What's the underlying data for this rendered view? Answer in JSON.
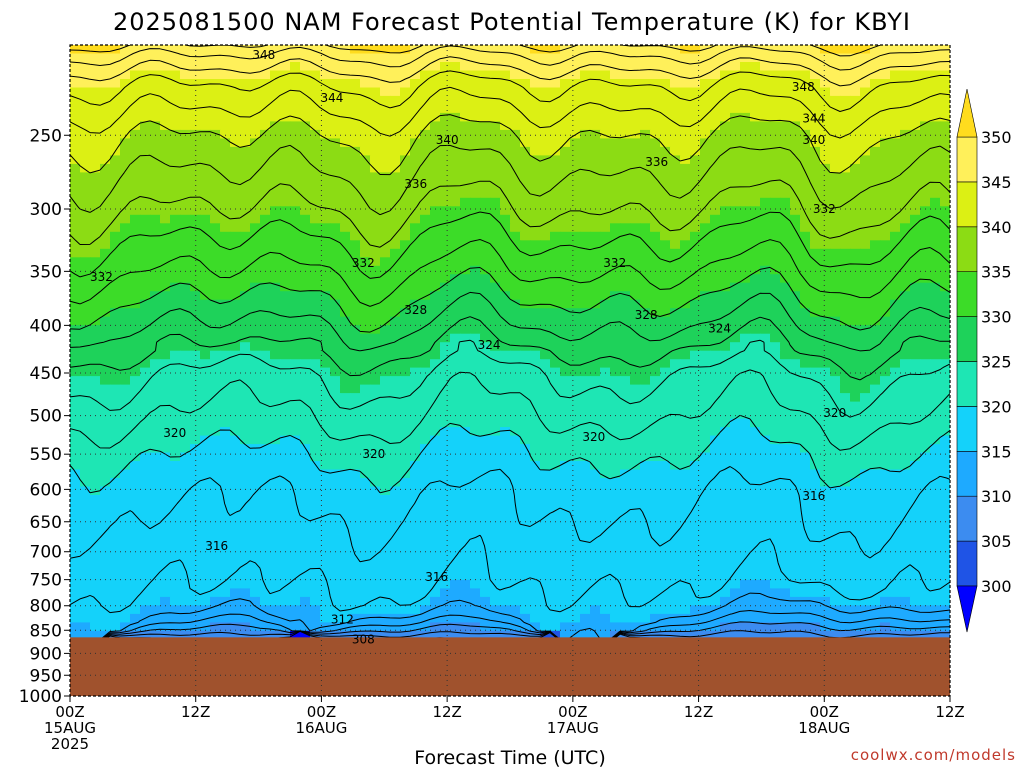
{
  "chart_data": {
    "type": "heatmap",
    "title": "2025081500 NAM Forecast Potential Temperature (K) for KBYI",
    "xlabel": "Forecast Time (UTC)",
    "ylabel": "",
    "x_ticks": [
      {
        "hour": 0,
        "label": "00Z",
        "sub": "15AUG",
        "sub2": "2025"
      },
      {
        "hour": 12,
        "label": "12Z",
        "sub": "",
        "sub2": ""
      },
      {
        "hour": 24,
        "label": "00Z",
        "sub": "16AUG",
        "sub2": ""
      },
      {
        "hour": 36,
        "label": "12Z",
        "sub": "",
        "sub2": ""
      },
      {
        "hour": 48,
        "label": "00Z",
        "sub": "17AUG",
        "sub2": ""
      },
      {
        "hour": 60,
        "label": "12Z",
        "sub": "",
        "sub2": ""
      },
      {
        "hour": 72,
        "label": "00Z",
        "sub": "18AUG",
        "sub2": ""
      },
      {
        "hour": 84,
        "label": "12Z",
        "sub": "",
        "sub2": ""
      }
    ],
    "xlim": [
      0,
      84
    ],
    "y_ticks": [
      250,
      300,
      350,
      400,
      450,
      500,
      550,
      600,
      650,
      700,
      750,
      800,
      850,
      900,
      950,
      1000
    ],
    "ylim": [
      1000,
      200
    ],
    "y_scale": "log-pressure",
    "grid": true,
    "surface_pressure": 865,
    "colorbar": {
      "levels": [
        300,
        305,
        310,
        315,
        320,
        325,
        330,
        335,
        340,
        345,
        350
      ],
      "colors": [
        "#0000ff",
        "#1f54e6",
        "#3c8cf0",
        "#1eaaff",
        "#14d2fa",
        "#1ee6b4",
        "#1ed25a",
        "#3cdc28",
        "#8cdc14",
        "#dcf014",
        "#fff05a",
        "#ffdc1e"
      ],
      "extend": "both"
    },
    "contour_levels": [
      306,
      308,
      310,
      312,
      314,
      316,
      318,
      320,
      322,
      324,
      326,
      328,
      330,
      332,
      334,
      336,
      338,
      340,
      342,
      344,
      346,
      348,
      350
    ],
    "theta_profile": [
      {
        "p": 865,
        "theta": 314
      },
      {
        "p": 800,
        "theta": 315.5
      },
      {
        "p": 700,
        "theta": 317
      },
      {
        "p": 600,
        "theta": 318.5
      },
      {
        "p": 550,
        "theta": 320
      },
      {
        "p": 500,
        "theta": 322
      },
      {
        "p": 450,
        "theta": 324
      },
      {
        "p": 400,
        "theta": 328
      },
      {
        "p": 350,
        "theta": 332
      },
      {
        "p": 300,
        "theta": 336
      },
      {
        "p": 250,
        "theta": 340
      },
      {
        "p": 220,
        "theta": 344
      },
      {
        "p": 205,
        "theta": 348
      },
      {
        "p": 200,
        "theta": 350
      }
    ],
    "boundary_layer": [
      {
        "hour": 3,
        "thickness": 0
      },
      {
        "hour": 9,
        "thickness": 70
      },
      {
        "hour": 17,
        "thickness": 140
      },
      {
        "hour": 22,
        "thickness": 0
      },
      {
        "hour": 27,
        "thickness": 60
      },
      {
        "hour": 39,
        "thickness": 110
      },
      {
        "hour": 46,
        "thickness": 0
      },
      {
        "hour": 52,
        "thickness": 0
      },
      {
        "hour": 60,
        "thickness": 90
      },
      {
        "hour": 68,
        "thickness": 150
      },
      {
        "hour": 74,
        "thickness": 120
      },
      {
        "hour": 84,
        "thickness": 80
      }
    ],
    "contour_labels": [
      {
        "text": "348",
        "hour": 18.5,
        "p": 205
      },
      {
        "text": "348",
        "hour": 70,
        "p": 222
      },
      {
        "text": "344",
        "hour": 25,
        "p": 228
      },
      {
        "text": "344",
        "hour": 71,
        "p": 240
      },
      {
        "text": "340",
        "hour": 36,
        "p": 253
      },
      {
        "text": "340",
        "hour": 71,
        "p": 253
      },
      {
        "text": "336",
        "hour": 33,
        "p": 282
      },
      {
        "text": "336",
        "hour": 56,
        "p": 267
      },
      {
        "text": "332",
        "hour": 72,
        "p": 300
      },
      {
        "text": "332",
        "hour": 28,
        "p": 343
      },
      {
        "text": "332",
        "hour": 3,
        "p": 355
      },
      {
        "text": "332",
        "hour": 52,
        "p": 343
      },
      {
        "text": "328",
        "hour": 33,
        "p": 385
      },
      {
        "text": "328",
        "hour": 55,
        "p": 390
      },
      {
        "text": "324",
        "hour": 40,
        "p": 420
      },
      {
        "text": "324",
        "hour": 62,
        "p": 403
      },
      {
        "text": "320",
        "hour": 10,
        "p": 522
      },
      {
        "text": "320",
        "hour": 50,
        "p": 527
      },
      {
        "text": "320",
        "hour": 73,
        "p": 497
      },
      {
        "text": "320",
        "hour": 29,
        "p": 550
      },
      {
        "text": "316",
        "hour": 14,
        "p": 690
      },
      {
        "text": "316",
        "hour": 35,
        "p": 745
      },
      {
        "text": "316",
        "hour": 71,
        "p": 610
      },
      {
        "text": "312",
        "hour": 26,
        "p": 828
      },
      {
        "text": "308",
        "hour": 28,
        "p": 870
      }
    ]
  },
  "credit": "coolwx.com/models"
}
